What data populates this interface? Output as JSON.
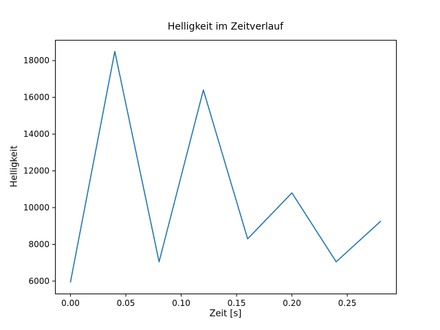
{
  "chart_data": {
    "type": "line",
    "title": "Helligkeit im Zeitverlauf",
    "xlabel": "Zeit [s]",
    "ylabel": "Helligkeit",
    "x": [
      0.0,
      0.04,
      0.08,
      0.12,
      0.16,
      0.2,
      0.24,
      0.28
    ],
    "y": [
      5950,
      18500,
      7050,
      16400,
      8300,
      10800,
      7050,
      9250
    ],
    "line_color": "#1f77b4",
    "axis_color": "#000000",
    "background_color": "#ffffff",
    "xlim": [
      -0.014,
      0.294
    ],
    "ylim": [
      5322.5,
      19127.5
    ],
    "xticks": [
      0.0,
      0.05,
      0.1,
      0.15,
      0.2,
      0.25
    ],
    "xtick_labels": [
      "0.00",
      "0.05",
      "0.10",
      "0.15",
      "0.20",
      "0.25"
    ],
    "yticks": [
      6000,
      8000,
      10000,
      12000,
      14000,
      16000,
      18000
    ],
    "ytick_labels": [
      "6000",
      "8000",
      "10000",
      "12000",
      "14000",
      "16000",
      "18000"
    ],
    "grid": false,
    "legend": false
  }
}
